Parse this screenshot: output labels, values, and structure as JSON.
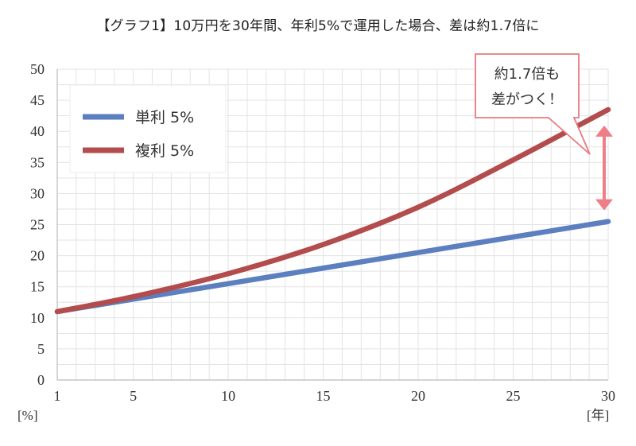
{
  "chart_data": {
    "title": "【グラフ1】10万円を30年間、年利5%で運用した場合、差は約1.7倍に",
    "type": "line",
    "x": [
      1,
      5,
      10,
      15,
      20,
      25,
      30
    ],
    "xticks": [
      "1",
      "5",
      "10",
      "15",
      "20",
      "25",
      "30"
    ],
    "xlabel": "[年]",
    "ylabel": "[%]",
    "xlim": [
      1,
      30
    ],
    "ylim": [
      0,
      50
    ],
    "yticks": [
      "0",
      "5",
      "10",
      "15",
      "20",
      "25",
      "30",
      "35",
      "40",
      "45",
      "50"
    ],
    "grid": true,
    "legend_position": "top-left",
    "series": [
      {
        "name": "単利 5%",
        "color": "#5b7fbf",
        "values": [
          11,
          13,
          15.5,
          18,
          20.5,
          23,
          25.5
        ]
      },
      {
        "name": "複利 5%",
        "color": "#b34c4c",
        "values": [
          11,
          13.4,
          17.1,
          21.8,
          27.8,
          35.4,
          43.5
        ]
      }
    ],
    "annotation": {
      "lines": [
        "約1.7倍も",
        "差がつく！"
      ],
      "border_color": "#e8797f",
      "arrow_color": "#ee7f86"
    }
  }
}
